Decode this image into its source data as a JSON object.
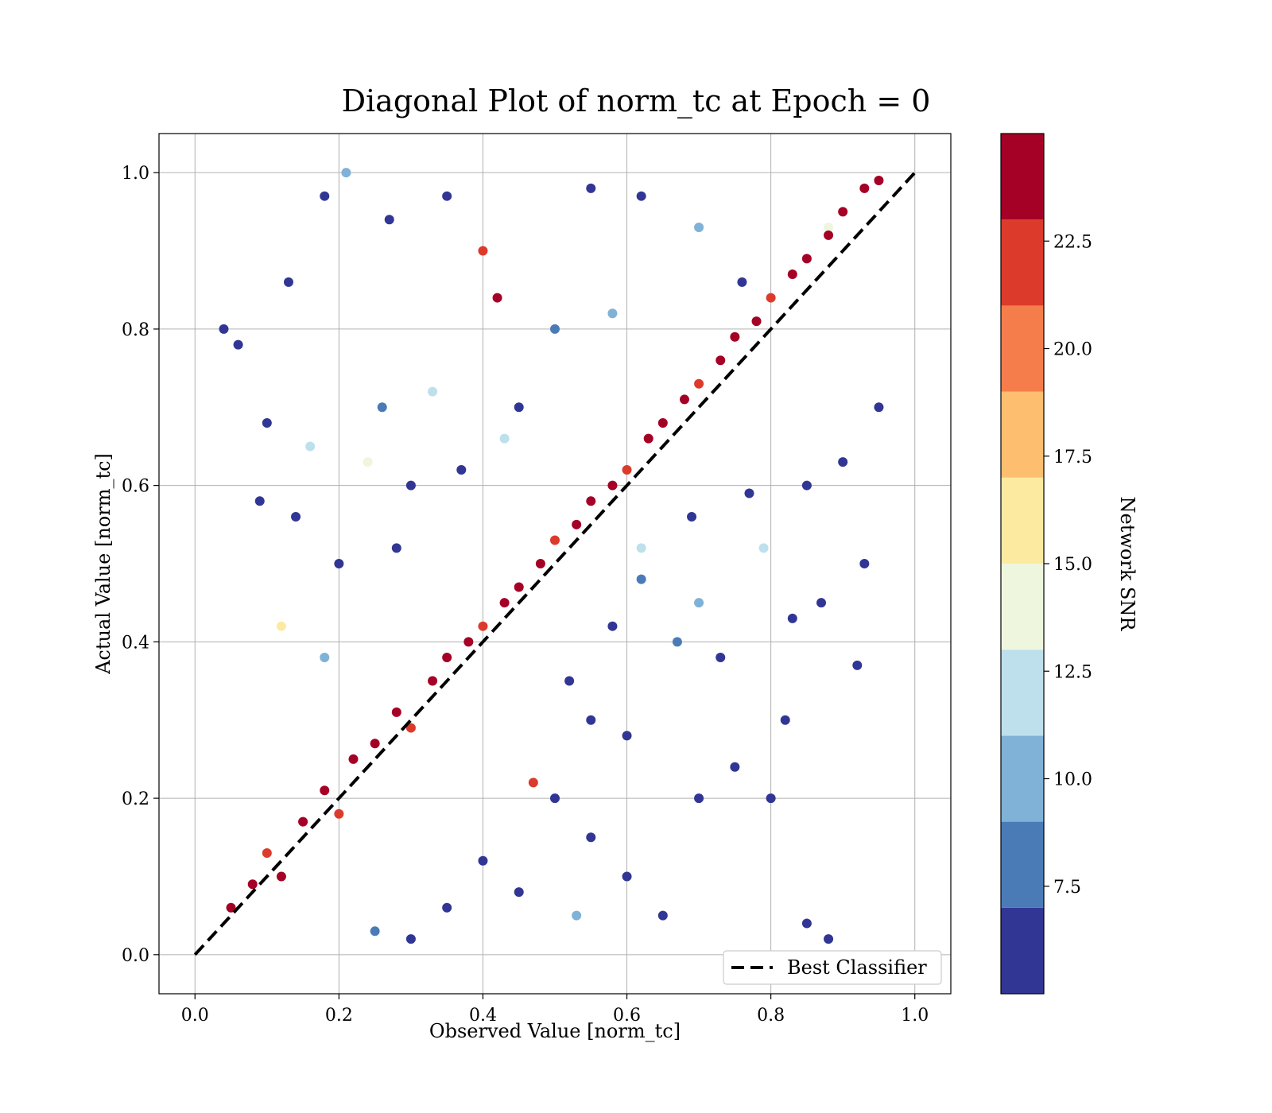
{
  "chart_data": {
    "type": "scatter",
    "title": "Diagonal Plot of norm_tc at Epoch = 0",
    "xlabel": "Observed Value [norm_tc]",
    "ylabel": "Actual Value [norm_tc]",
    "xlim": [
      -0.05,
      1.05
    ],
    "ylim": [
      -0.05,
      1.05
    ],
    "x_ticks": [
      "0.0",
      "0.2",
      "0.4",
      "0.6",
      "0.8",
      "1.0"
    ],
    "y_ticks": [
      "0.0",
      "0.2",
      "0.4",
      "0.6",
      "0.8",
      "1.0"
    ],
    "grid": true,
    "reference_line": {
      "name": "Best Classifier",
      "x": [
        0,
        1
      ],
      "y": [
        0,
        1
      ],
      "style": "dashed",
      "color": "#000000"
    },
    "legend": {
      "position": "lower-right",
      "entries": [
        "Best Classifier"
      ]
    },
    "colorbar": {
      "label": "Network SNR",
      "range": [
        5.0,
        25.0
      ],
      "bin_edges": [
        5.0,
        7.0,
        9.0,
        11.0,
        13.0,
        15.0,
        17.0,
        19.0,
        21.0,
        23.0,
        25.0
      ],
      "ticks": [
        "7.5",
        "10.0",
        "12.5",
        "15.0",
        "17.5",
        "20.0",
        "22.5"
      ],
      "colors": [
        "#313695",
        "#4a7bb7",
        "#7fb2d6",
        "#bde0ec",
        "#eef6de",
        "#fdeaa1",
        "#fdbf6f",
        "#f57d4b",
        "#dc3b2c",
        "#a50026"
      ]
    },
    "description_of_distribution": "Dense diagonal band of high-SNR points (dark red/orange) along y = x; scattered low-SNR points (dark blue/light blue) spread far from the diagonal in both directions",
    "points": [
      [
        0.05,
        0.06,
        23.5
      ],
      [
        0.08,
        0.09,
        24.0
      ],
      [
        0.1,
        0.13,
        22.8
      ],
      [
        0.12,
        0.1,
        24.2
      ],
      [
        0.15,
        0.17,
        23.9
      ],
      [
        0.18,
        0.21,
        24.1
      ],
      [
        0.2,
        0.18,
        22.5
      ],
      [
        0.22,
        0.25,
        24.3
      ],
      [
        0.25,
        0.27,
        23.7
      ],
      [
        0.28,
        0.31,
        24.0
      ],
      [
        0.3,
        0.29,
        21.5
      ],
      [
        0.33,
        0.35,
        24.4
      ],
      [
        0.35,
        0.38,
        23.6
      ],
      [
        0.38,
        0.4,
        24.1
      ],
      [
        0.4,
        0.42,
        22.9
      ],
      [
        0.43,
        0.45,
        24.2
      ],
      [
        0.45,
        0.47,
        23.8
      ],
      [
        0.48,
        0.5,
        24.0
      ],
      [
        0.5,
        0.53,
        22.6
      ],
      [
        0.53,
        0.55,
        24.5
      ],
      [
        0.55,
        0.58,
        23.4
      ],
      [
        0.58,
        0.6,
        24.1
      ],
      [
        0.6,
        0.62,
        21.9
      ],
      [
        0.63,
        0.66,
        24.3
      ],
      [
        0.65,
        0.68,
        23.5
      ],
      [
        0.68,
        0.71,
        24.0
      ],
      [
        0.7,
        0.73,
        22.7
      ],
      [
        0.73,
        0.76,
        24.4
      ],
      [
        0.75,
        0.79,
        23.9
      ],
      [
        0.78,
        0.81,
        24.1
      ],
      [
        0.8,
        0.84,
        22.8
      ],
      [
        0.83,
        0.87,
        24.2
      ],
      [
        0.85,
        0.89,
        23.6
      ],
      [
        0.88,
        0.92,
        24.0
      ],
      [
        0.9,
        0.95,
        23.1
      ],
      [
        0.93,
        0.98,
        24.3
      ],
      [
        0.95,
        0.99,
        23.7
      ],
      [
        0.04,
        0.8,
        6.0
      ],
      [
        0.06,
        0.78,
        5.5
      ],
      [
        0.1,
        0.68,
        6.5
      ],
      [
        0.13,
        0.86,
        5.8
      ],
      [
        0.18,
        0.97,
        6.2
      ],
      [
        0.21,
        1.0,
        9.0
      ],
      [
        0.27,
        0.94,
        6.0
      ],
      [
        0.35,
        0.97,
        5.5
      ],
      [
        0.4,
        0.9,
        21.5
      ],
      [
        0.42,
        0.84,
        23.5
      ],
      [
        0.55,
        0.98,
        6.5
      ],
      [
        0.62,
        0.97,
        6.0
      ],
      [
        0.7,
        0.93,
        10.0
      ],
      [
        0.76,
        0.86,
        5.5
      ],
      [
        0.88,
        0.93,
        14.5
      ],
      [
        0.09,
        0.58,
        5.9
      ],
      [
        0.14,
        0.56,
        6.1
      ],
      [
        0.24,
        0.63,
        13.0
      ],
      [
        0.3,
        0.6,
        5.7
      ],
      [
        0.33,
        0.72,
        11.0
      ],
      [
        0.45,
        0.7,
        6.4
      ],
      [
        0.5,
        0.8,
        7.0
      ],
      [
        0.58,
        0.82,
        10.5
      ],
      [
        0.12,
        0.42,
        15.5
      ],
      [
        0.18,
        0.38,
        9.5
      ],
      [
        0.2,
        0.5,
        6.0
      ],
      [
        0.28,
        0.52,
        5.5
      ],
      [
        0.37,
        0.62,
        6.8
      ],
      [
        0.43,
        0.66,
        12.0
      ],
      [
        0.26,
        0.7,
        7.5
      ],
      [
        0.16,
        0.65,
        12.0
      ],
      [
        0.5,
        0.2,
        5.5
      ],
      [
        0.55,
        0.15,
        6.0
      ],
      [
        0.6,
        0.1,
        5.8
      ],
      [
        0.65,
        0.05,
        6.5
      ],
      [
        0.7,
        0.2,
        5.6
      ],
      [
        0.75,
        0.24,
        5.9
      ],
      [
        0.8,
        0.2,
        6.2
      ],
      [
        0.85,
        0.04,
        5.5
      ],
      [
        0.88,
        0.02,
        6.0
      ],
      [
        0.92,
        0.37,
        5.7
      ],
      [
        0.93,
        0.5,
        6.1
      ],
      [
        0.95,
        0.7,
        5.8
      ],
      [
        0.82,
        0.3,
        6.3
      ],
      [
        0.73,
        0.38,
        5.6
      ],
      [
        0.67,
        0.4,
        7.5
      ],
      [
        0.6,
        0.28,
        6.0
      ],
      [
        0.55,
        0.3,
        6.2
      ],
      [
        0.47,
        0.22,
        22.0
      ],
      [
        0.53,
        0.05,
        10.5
      ],
      [
        0.45,
        0.08,
        6.0
      ],
      [
        0.4,
        0.12,
        5.7
      ],
      [
        0.35,
        0.06,
        6.4
      ],
      [
        0.3,
        0.02,
        5.9
      ],
      [
        0.25,
        0.03,
        7.0
      ],
      [
        0.62,
        0.52,
        12.5
      ],
      [
        0.69,
        0.56,
        6.0
      ],
      [
        0.77,
        0.59,
        5.6
      ],
      [
        0.85,
        0.6,
        6.2
      ],
      [
        0.9,
        0.63,
        5.8
      ],
      [
        0.83,
        0.43,
        6.0
      ],
      [
        0.87,
        0.45,
        5.5
      ],
      [
        0.7,
        0.45,
        9.0
      ],
      [
        0.58,
        0.42,
        6.4
      ],
      [
        0.52,
        0.35,
        5.9
      ],
      [
        0.62,
        0.48,
        8.0
      ],
      [
        0.79,
        0.52,
        12.0
      ]
    ]
  }
}
